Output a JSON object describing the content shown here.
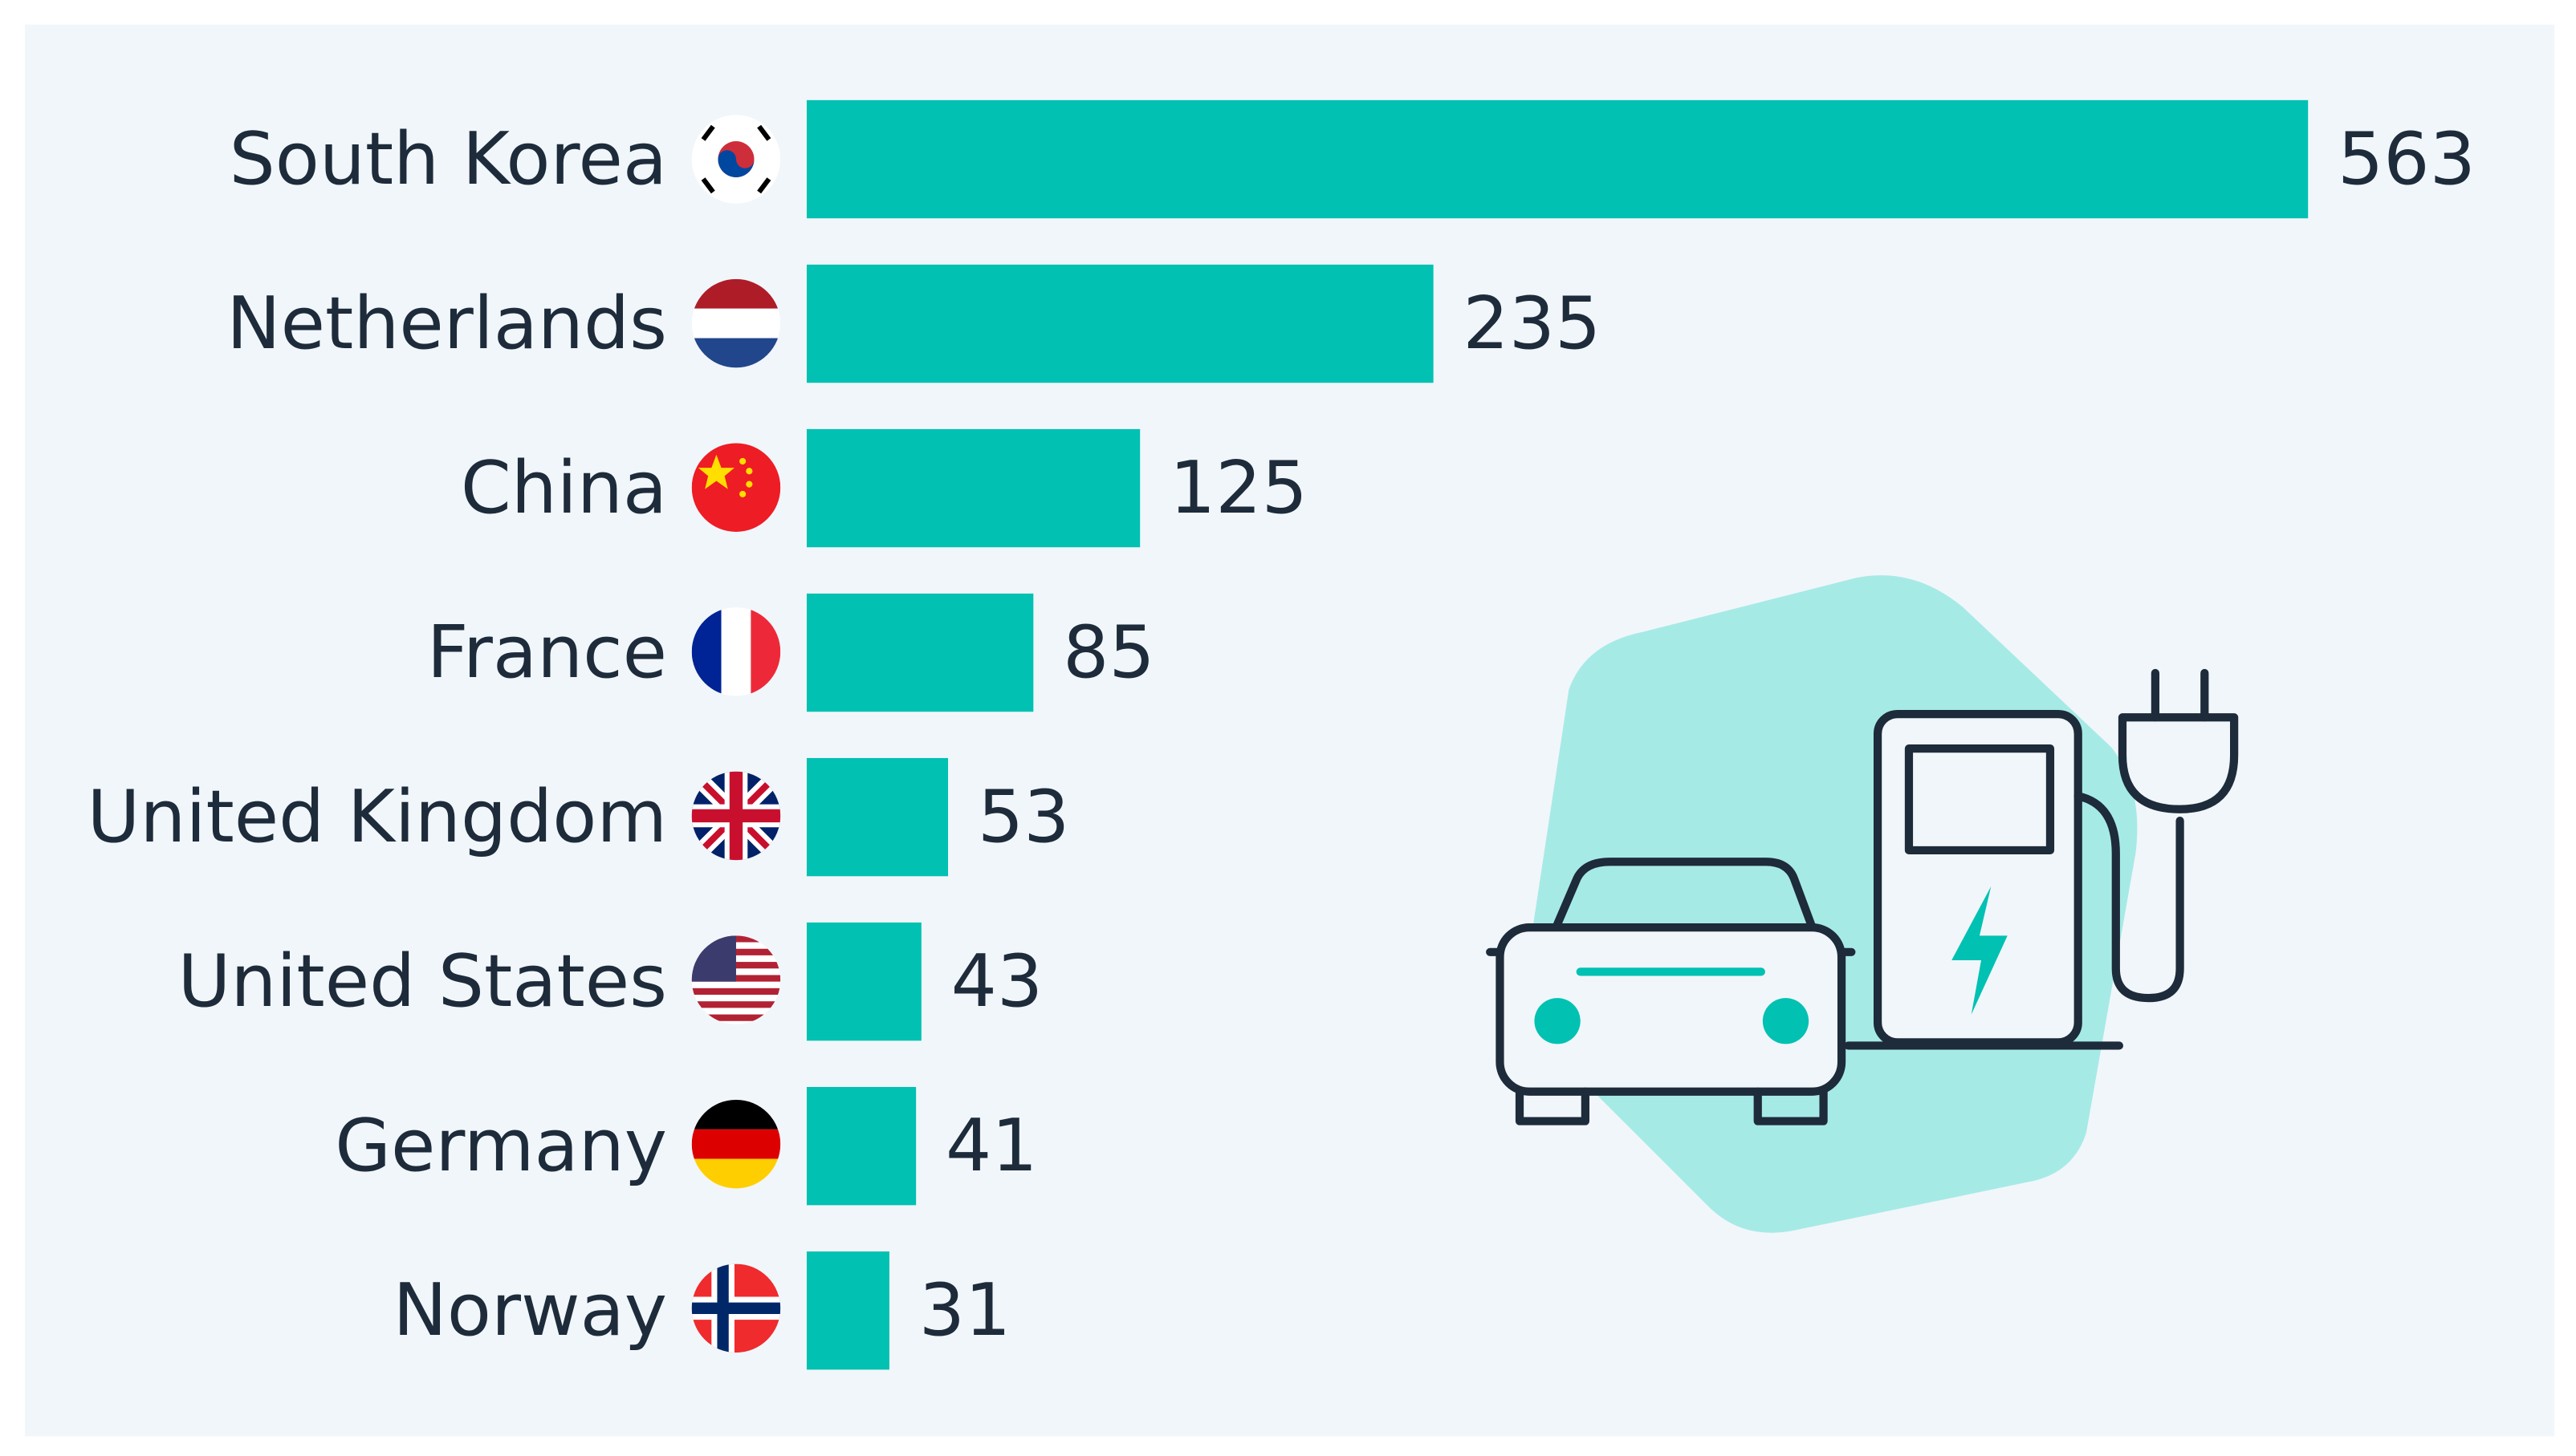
{
  "chart_data": {
    "type": "bar",
    "orientation": "horizontal",
    "categories": [
      "South Korea",
      "Netherlands",
      "China",
      "France",
      "United Kingdom",
      "United States",
      "Germany",
      "Norway"
    ],
    "values": [
      563,
      235,
      125,
      85,
      53,
      43,
      41,
      31
    ],
    "color": "#00c1b2"
  }
}
